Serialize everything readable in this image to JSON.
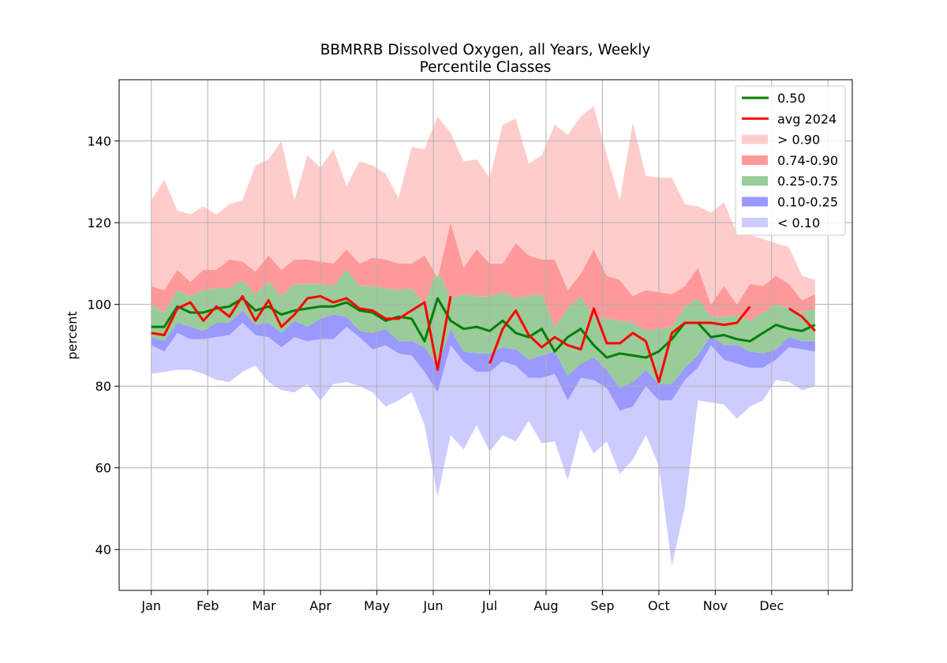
{
  "chart_data": {
    "type": "area",
    "title": "BBMRRB Dissolved Oxygen, all Years, Weekly",
    "subtitle": "Percentile Classes",
    "xlabel": "",
    "ylabel": "percent",
    "xlim": [
      -0.57,
      12.43
    ],
    "ylim": [
      30,
      155
    ],
    "month_ticks": [
      "Jan",
      "Feb",
      "Mar",
      "Apr",
      "May",
      "Jun",
      "Jul",
      "Aug",
      "Sep",
      "Oct",
      "Nov",
      "Dec",
      ""
    ],
    "yticks": [
      40,
      60,
      80,
      100,
      120,
      140
    ],
    "grid": true,
    "legend_position": "top-right",
    "colors": {
      "median": "#008000",
      "avg_2024": "#ff0000",
      "gt_90": "#ffcccc",
      "p74_90": "#ff9999",
      "p25_75": "#99cc99",
      "p10_25": "#9999ff",
      "lt_10": "#ccccff",
      "grid": "#b0b0b0"
    },
    "legend": [
      {
        "label": "0.50",
        "kind": "line",
        "color": "#008000"
      },
      {
        "label": "avg 2024",
        "kind": "line",
        "color": "#ff0000"
      },
      {
        "label": "> 0.90",
        "kind": "patch",
        "color": "#ffcccc"
      },
      {
        "label": "0.74-0.90",
        "kind": "patch",
        "color": "#ff9999"
      },
      {
        "label": "0.25-0.75",
        "kind": "patch",
        "color": "#99cc99"
      },
      {
        "label": "0.10-0.25",
        "kind": "patch",
        "color": "#9999ff"
      },
      {
        "label": "< 0.10",
        "kind": "patch",
        "color": "#ccccff"
      }
    ],
    "weeks": [
      1,
      2,
      3,
      4,
      5,
      6,
      7,
      8,
      9,
      10,
      11,
      12,
      13,
      14,
      15,
      16,
      17,
      18,
      19,
      20,
      21,
      22,
      23,
      24,
      25,
      26,
      27,
      28,
      29,
      30,
      31,
      32,
      33,
      34,
      35,
      36,
      37,
      38,
      39,
      40,
      41,
      42,
      43,
      44,
      45,
      46,
      47,
      48,
      49,
      50,
      51,
      52
    ],
    "series": {
      "min": [
        83,
        83.5,
        84,
        84,
        83,
        81.5,
        81,
        83.5,
        85,
        81,
        79,
        78.5,
        80.5,
        76.5,
        80.5,
        81,
        80,
        78.5,
        75,
        76.5,
        78.5,
        70.5,
        53,
        68,
        64.5,
        70.5,
        64,
        68,
        66.5,
        71.5,
        66,
        66.5,
        57,
        69.5,
        63.5,
        66.5,
        58.5,
        62,
        68,
        60.5,
        36,
        50.5,
        76.5,
        76,
        75.5,
        72,
        75,
        76.5,
        81.5,
        81,
        79,
        80
      ],
      "p10": [
        90,
        88.5,
        93,
        91.5,
        91.5,
        92,
        92.5,
        95.5,
        92.5,
        92,
        89.5,
        92,
        91,
        91.5,
        91.5,
        94.5,
        92,
        89,
        90,
        88,
        87.5,
        83.5,
        78.5,
        90,
        86,
        83.5,
        83.5,
        86,
        85,
        82,
        82,
        83,
        76.5,
        82,
        81.5,
        79.5,
        74,
        75,
        80,
        76.5,
        76.5,
        81.5,
        84.5,
        90,
        86.5,
        85.5,
        84.5,
        84.5,
        86.5,
        89.5,
        89,
        88.5
      ],
      "p25": [
        92,
        91,
        95.5,
        94.5,
        93.5,
        95.5,
        95.5,
        98.5,
        95,
        95.5,
        93,
        96,
        94.5,
        96.5,
        97.5,
        97,
        93.5,
        93,
        94,
        91,
        91,
        89.5,
        85,
        94,
        88.5,
        88,
        88,
        89.5,
        89,
        86.5,
        87.5,
        88.5,
        82.5,
        85.5,
        87,
        84,
        79.5,
        81,
        84,
        80.5,
        80.5,
        84.5,
        87.5,
        92.5,
        90,
        90,
        88.5,
        88,
        89,
        92,
        91,
        91
      ],
      "p50": [
        94.5,
        94.5,
        99.5,
        98,
        98,
        99,
        99.5,
        101.5,
        98.5,
        99.5,
        97.5,
        98.5,
        99,
        99.5,
        99.5,
        100.5,
        98.5,
        98,
        96,
        97,
        96.5,
        91,
        101.5,
        96,
        94,
        94.5,
        93.5,
        96,
        93,
        92,
        94,
        88.5,
        92,
        94,
        90,
        87,
        88,
        87.5,
        87,
        88.5,
        91.5,
        95.5,
        95.5,
        92,
        92.5,
        91.5,
        91,
        93,
        95,
        94,
        93.5,
        95
      ],
      "p75": [
        100,
        98,
        103.5,
        102,
        103.5,
        104,
        104,
        106,
        102.5,
        105.5,
        102,
        105,
        105,
        105,
        104.5,
        108.5,
        104.5,
        104.5,
        104,
        103.5,
        104,
        100,
        108.5,
        101.5,
        102.5,
        102,
        102,
        103,
        101.5,
        102,
        102.5,
        94.5,
        99,
        102,
        97,
        96.5,
        96,
        95.5,
        93.5,
        94,
        94.5,
        99.5,
        101.5,
        97,
        97,
        97.5,
        96,
        98,
        100,
        99,
        98,
        99
      ],
      "p90": [
        104.5,
        103.5,
        108.5,
        105.5,
        108.5,
        108.5,
        111,
        110.5,
        108,
        112,
        108.5,
        111,
        111,
        110.5,
        110,
        113.5,
        110,
        111.5,
        111,
        110,
        110,
        112,
        106.5,
        120,
        109,
        113.5,
        110,
        110,
        115,
        112,
        111,
        111,
        103.5,
        107.5,
        113.5,
        107,
        106,
        102,
        103.5,
        103,
        102.5,
        104.5,
        109,
        100,
        104.5,
        100,
        105,
        104.5,
        107,
        105,
        101,
        102.5
      ],
      "max": [
        125.5,
        130.5,
        123,
        122,
        124,
        122,
        124.5,
        125.5,
        134,
        135.5,
        140,
        125.5,
        136.5,
        133.5,
        138,
        129,
        135,
        134,
        132,
        126,
        138.5,
        138,
        146,
        142,
        135,
        135.5,
        131,
        144,
        145.5,
        134.5,
        136.5,
        144,
        141.5,
        146,
        148.5,
        136.5,
        125.5,
        144.5,
        131.5,
        131,
        131,
        124.5,
        124,
        122.5,
        125,
        117.5,
        117,
        116,
        115,
        114,
        107,
        106
      ],
      "avg2024": [
        93,
        92.5,
        99,
        100.5,
        96,
        99.5,
        97,
        102,
        96,
        101,
        94.5,
        97.5,
        101.5,
        102,
        100.5,
        101.5,
        99,
        98.5,
        96.5,
        96.5,
        98.5,
        100.5,
        84,
        102,
        null,
        null,
        85.5,
        94,
        98.5,
        92.5,
        89.5,
        92,
        90,
        89,
        99,
        90.5,
        90.5,
        93,
        91,
        81,
        93,
        95.5,
        95.5,
        95.5,
        95,
        95.5,
        99.5,
        null,
        null,
        99,
        97,
        93.5
      ]
    }
  }
}
